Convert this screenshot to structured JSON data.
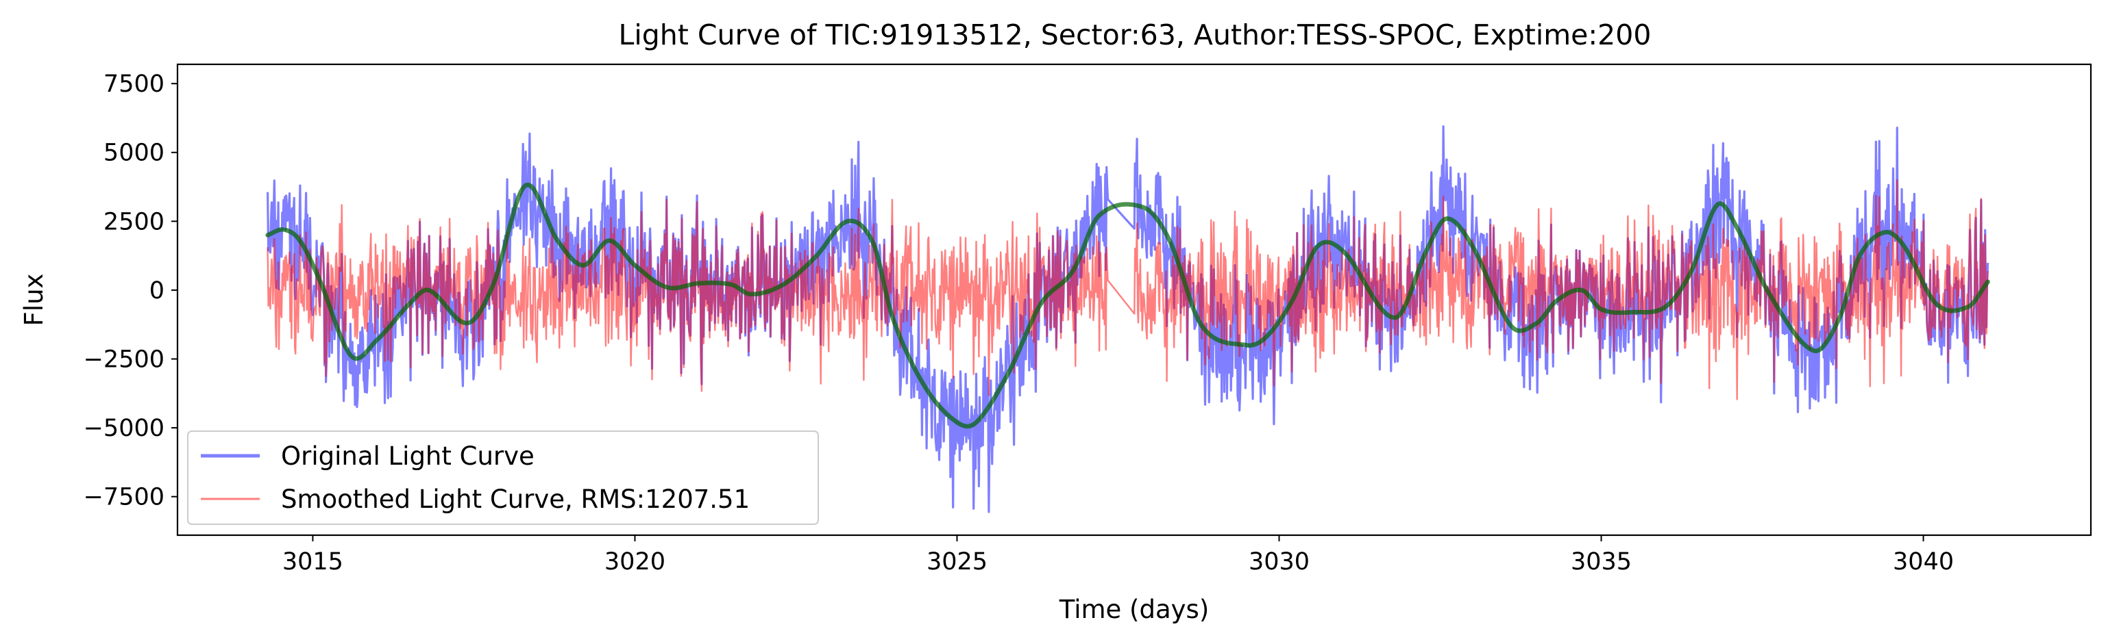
{
  "chart_data": {
    "type": "line",
    "title": "Light Curve of TIC:91913512, Sector:63, Author:TESS-SPOC, Exptime:200",
    "xlabel": "Time (days)",
    "ylabel": "Flux",
    "xlim": [
      3012.9,
      3042.6
    ],
    "ylim": [
      -8900,
      8200
    ],
    "x_ticks": [
      3015,
      3020,
      3025,
      3030,
      3035,
      3040
    ],
    "x_tick_labels": [
      "3015",
      "3020",
      "3025",
      "3030",
      "3035",
      "3040"
    ],
    "y_ticks": [
      7500,
      5000,
      2500,
      0,
      -2500,
      -5000,
      -7500
    ],
    "y_tick_labels": [
      "7500",
      "5000",
      "2500",
      "0",
      "−2500",
      "−5000",
      "−7500"
    ],
    "grid": false,
    "legend_position": "lower-left",
    "x_range": [
      3014.3,
      3041.0
    ],
    "gaps": [
      [
        3027.35,
        3027.75
      ]
    ],
    "series": [
      {
        "name": "Original Light Curve",
        "color": "#0000ff",
        "alpha": 0.5,
        "role": "original",
        "trend": [
          [
            3014.3,
            2000
          ],
          [
            3014.55,
            2200
          ],
          [
            3014.8,
            1800
          ],
          [
            3015.1,
            400
          ],
          [
            3015.6,
            -2400
          ],
          [
            3016.0,
            -1800
          ],
          [
            3016.5,
            -500
          ],
          [
            3016.8,
            0
          ],
          [
            3017.4,
            -1200
          ],
          [
            3017.8,
            200
          ],
          [
            3018.3,
            3800
          ],
          [
            3018.8,
            1800
          ],
          [
            3019.2,
            900
          ],
          [
            3019.6,
            1800
          ],
          [
            3020.0,
            900
          ],
          [
            3020.5,
            100
          ],
          [
            3021.0,
            250
          ],
          [
            3021.5,
            200
          ],
          [
            3021.8,
            -150
          ],
          [
            3022.3,
            200
          ],
          [
            3022.8,
            1200
          ],
          [
            3023.3,
            2500
          ],
          [
            3023.7,
            1700
          ],
          [
            3024.0,
            -1000
          ],
          [
            3024.5,
            -3500
          ],
          [
            3025.0,
            -4800
          ],
          [
            3025.3,
            -4800
          ],
          [
            3025.8,
            -3000
          ],
          [
            3026.3,
            -500
          ],
          [
            3026.8,
            700
          ],
          [
            3027.2,
            2700
          ],
          [
            3027.9,
            3000
          ],
          [
            3028.3,
            1800
          ],
          [
            3028.8,
            -1300
          ],
          [
            3029.5,
            -2000
          ],
          [
            3029.8,
            -1700
          ],
          [
            3030.2,
            -400
          ],
          [
            3030.6,
            1600
          ],
          [
            3031.0,
            1400
          ],
          [
            3031.8,
            -1000
          ],
          [
            3032.3,
            1500
          ],
          [
            3032.6,
            2600
          ],
          [
            3033.0,
            1600
          ],
          [
            3033.6,
            -1300
          ],
          [
            3034.0,
            -1200
          ],
          [
            3034.3,
            -400
          ],
          [
            3034.7,
            0
          ],
          [
            3035.0,
            -700
          ],
          [
            3035.5,
            -800
          ],
          [
            3036.0,
            -600
          ],
          [
            3036.4,
            700
          ],
          [
            3036.8,
            3100
          ],
          [
            3037.1,
            2300
          ],
          [
            3037.6,
            -100
          ],
          [
            3038.3,
            -2200
          ],
          [
            3038.7,
            -1000
          ],
          [
            3039.0,
            1200
          ],
          [
            3039.4,
            2100
          ],
          [
            3039.7,
            1600
          ],
          [
            3040.2,
            -500
          ],
          [
            3040.7,
            -600
          ],
          [
            3041.0,
            300
          ]
        ],
        "amplitude": 1700
      },
      {
        "name": "Smoothed Light Curve, RMS:1207.51",
        "color": "#ff0000",
        "alpha": 0.5,
        "role": "residual",
        "amplitude": 1207.51
      },
      {
        "name": "",
        "color": "#006400",
        "alpha": 0.7,
        "role": "smooth",
        "in_legend": false
      }
    ]
  }
}
